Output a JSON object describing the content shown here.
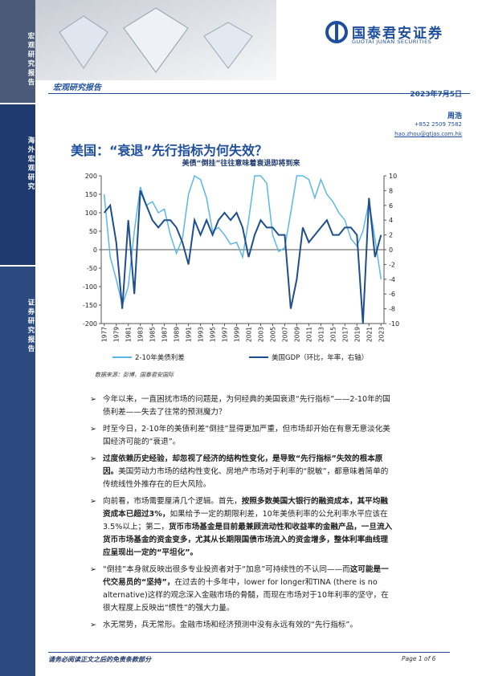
{
  "header": {
    "logo_cn": "国泰君安证券",
    "logo_en": "GUOTAI JUNAN SECURITIES",
    "report_type": "宏观研究报告",
    "date": "2023年7月5日"
  },
  "sidebar": [
    "宏观研究报告",
    "海外宏观研究",
    "证券研究报告"
  ],
  "author": {
    "name": "周浩",
    "phone": "+852 2509 7582",
    "email": "hao.zhou@gtjas.com.hk"
  },
  "title": "美国：“衰退”先行指标为何失效？",
  "chart_data": {
    "type": "line",
    "title": "美债“倒挂”往往意味着衰退即将到来",
    "source": "数据来源：彭博，国泰君安国际",
    "x": [
      1977,
      1978,
      1979,
      1980,
      1981,
      1982,
      1983,
      1984,
      1985,
      1986,
      1987,
      1988,
      1989,
      1990,
      1991,
      1992,
      1993,
      1994,
      1995,
      1996,
      1997,
      1998,
      1999,
      2000,
      2001,
      2002,
      2003,
      2004,
      2005,
      2006,
      2007,
      2008,
      2009,
      2010,
      2011,
      2012,
      2013,
      2014,
      2015,
      2016,
      2017,
      2018,
      2019,
      2020,
      2021,
      2022,
      2023
    ],
    "xlim": [
      1976.5,
      2023.5
    ],
    "xticks": [
      1977,
      1979,
      1981,
      1983,
      1985,
      1987,
      1989,
      1991,
      1993,
      1995,
      1997,
      1999,
      2001,
      2003,
      2005,
      2007,
      2009,
      2011,
      2013,
      2015,
      2017,
      2019,
      2021,
      2023
    ],
    "ylim": [
      -200,
      200
    ],
    "yticks": [
      -200,
      -150,
      -100,
      -50,
      0,
      50,
      100,
      150,
      200
    ],
    "y2lim": [
      -10,
      10
    ],
    "y2ticks": [
      -10,
      -8,
      -6,
      -4,
      -2,
      0,
      2,
      4,
      6,
      8,
      10
    ],
    "series": [
      {
        "name": "2-10年美债利差",
        "color": "#5bb8e6",
        "values": [
          150,
          -20,
          -80,
          -150,
          -100,
          50,
          170,
          120,
          130,
          100,
          110,
          40,
          -10,
          30,
          150,
          200,
          190,
          140,
          50,
          60,
          40,
          15,
          20,
          -20,
          80,
          200,
          200,
          180,
          40,
          -5,
          5,
          100,
          200,
          200,
          190,
          140,
          190,
          150,
          130,
          100,
          80,
          30,
          10,
          50,
          130,
          30,
          -80
        ]
      },
      {
        "name": "美国GDP（环比，年率，右轴）",
        "color": "#1f4e8c",
        "axis": "y2",
        "values": [
          5,
          6,
          1,
          -8,
          4,
          -6,
          8,
          6,
          4,
          3,
          4,
          4,
          3,
          1,
          -2,
          4,
          2,
          4,
          2,
          4,
          5,
          4,
          5,
          3,
          -1,
          2,
          4,
          3,
          3,
          2,
          2,
          -8,
          -4,
          3,
          1,
          2,
          3,
          4,
          2,
          2,
          3,
          3,
          2,
          -10,
          7,
          -1,
          2
        ]
      }
    ]
  },
  "bullets": [
    [
      {
        "text": "今年以来，一直困扰市场的问题是，为何经典的美国衰退“先行指标”——2-10年的国债利差——失去了往常的预测魔力？"
      }
    ],
    [
      {
        "text": "时至今日，2-10年的美债利差“倒挂”显得更加严重，但市场却开始在有意无意淡化美国经济可能的“衰退”。"
      }
    ],
    [
      {
        "text": "过度依赖历史经验，却忽视了经济的结构性变化，是导致“先行指标”失效的根本原因。",
        "bold": true
      },
      {
        "text": "美国劳动力市场的结构性变化、房地产市场对于利率的“脱敏”，都意味着简单的传统线性外推存在的巨大风险。"
      }
    ],
    [
      {
        "text": "向前看，市场需要厘清几个逻辑。首先，"
      },
      {
        "text": "按照多数美国大银行的融资成本，其平均融资成本已超过3%，",
        "bold": true
      },
      {
        "text": "如果给予一定的期限利差，10年美债利率的公允利率水平应该在3.5%以上；第二，"
      },
      {
        "text": "货币市场基金是目前最兼顾流动性和收益率的金融产品，一旦流入货币市场基金的资金变多，尤其从长期限国债市场流入的资金增多，整体利率曲线理应呈现出一定的“平坦化”。",
        "bold": true
      }
    ],
    [
      {
        "text": "“倒挂”本身就反映出很多专业投资者对于“加息”可持续性的不认同——而"
      },
      {
        "text": "这可能是一代交易员的“坚持”，",
        "bold": true
      },
      {
        "text": "在过去的十多年中，lower for longer和TINA (there is no alternative)这样的观念深入金融市场的骨髓，而现在市场对于10年利率的坚守，在很大程度上反映出“惯性”的强大力量。"
      }
    ],
    [
      {
        "text": "水无常势，兵无常形。金融市场和经济预测中没有永远有效的“先行指标”。"
      }
    ]
  ],
  "footer": {
    "left": "请务必阅读正文之后的免责条款部分",
    "right": "Page 1 of 6"
  }
}
